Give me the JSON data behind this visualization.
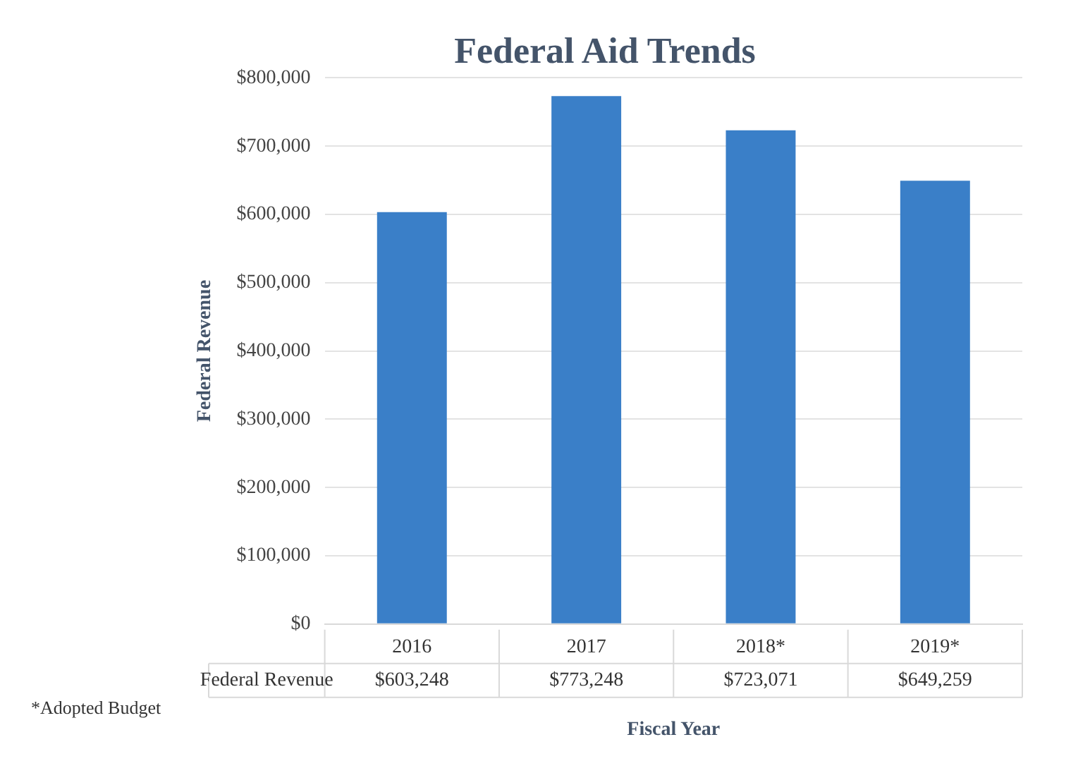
{
  "chart_data": {
    "type": "bar",
    "title": "Federal Aid Trends",
    "xlabel": "Fiscal Year",
    "ylabel": "Federal Revenue",
    "categories": [
      "2016",
      "2017",
      "2018*",
      "2019*"
    ],
    "series": [
      {
        "name": "Federal Revenue",
        "color": "#3a7fc8",
        "values": [
          603248,
          773248,
          723071,
          649259
        ]
      }
    ],
    "value_labels": [
      "$603,248",
      "$773,248",
      "$723,071",
      "$649,259"
    ],
    "ylim": [
      0,
      800000
    ],
    "yticks": [
      {
        "value": 0,
        "label": "$0"
      },
      {
        "value": 100000,
        "label": "$100,000"
      },
      {
        "value": 200000,
        "label": "$200,000"
      },
      {
        "value": 300000,
        "label": "$300,000"
      },
      {
        "value": 400000,
        "label": "$400,000"
      },
      {
        "value": 500000,
        "label": "$500,000"
      },
      {
        "value": 600000,
        "label": "$600,000"
      },
      {
        "value": 700000,
        "label": "$700,000"
      },
      {
        "value": 800000,
        "label": "$800,000"
      }
    ],
    "grid": "y",
    "legend": false,
    "annotations": [
      "*Adopted Budget"
    ]
  }
}
